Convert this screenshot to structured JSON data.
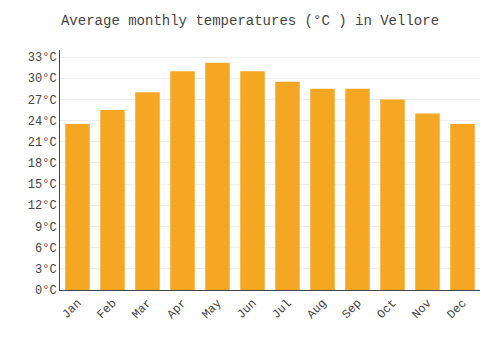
{
  "chart_data": {
    "type": "bar",
    "title": "Average monthly temperatures (°C ) in Vellore",
    "categories": [
      "Jan",
      "Feb",
      "Mar",
      "Apr",
      "May",
      "Jun",
      "Jul",
      "Aug",
      "Sep",
      "Oct",
      "Nov",
      "Dec"
    ],
    "values": [
      23.5,
      25.5,
      28.0,
      31.0,
      32.2,
      31.0,
      29.5,
      28.5,
      28.5,
      27.0,
      25.0,
      23.5
    ],
    "color": "#F5A623",
    "ylim": [
      0,
      34
    ],
    "yticks": [
      {
        "value": 0,
        "label": "0°C"
      },
      {
        "value": 3,
        "label": "3°C"
      },
      {
        "value": 6,
        "label": "6°C"
      },
      {
        "value": 9,
        "label": "9°C"
      },
      {
        "value": 12,
        "label": "12°C"
      },
      {
        "value": 15,
        "label": "15°C"
      },
      {
        "value": 18,
        "label": "18°C"
      },
      {
        "value": 21,
        "label": "21°C"
      },
      {
        "value": 24,
        "label": "24°C"
      },
      {
        "value": 27,
        "label": "27°C"
      },
      {
        "value": 30,
        "label": "30°C"
      },
      {
        "value": 33,
        "label": "33°C"
      }
    ],
    "grid": true
  }
}
